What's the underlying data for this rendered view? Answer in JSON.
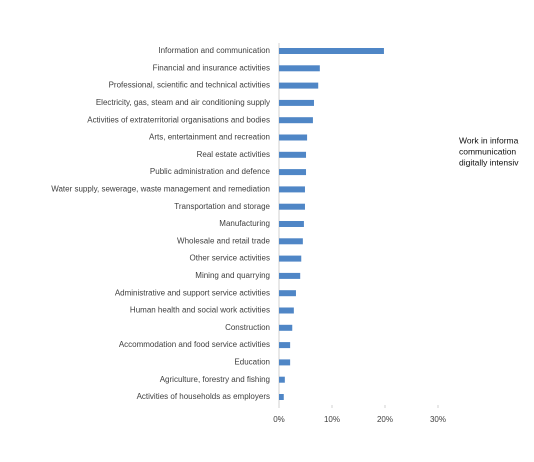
{
  "chart_data": {
    "type": "bar",
    "orientation": "horizontal",
    "categories": [
      "Information and communication",
      "Financial and insurance activities",
      "Professional, scientific and technical activities",
      "Electricity, gas, steam and air conditioning supply",
      "Activities of extraterritorial organisations and bodies",
      "Arts, entertainment and recreation",
      "Real estate activities",
      "Public administration and defence",
      "Water supply, sewerage, waste management and remediation",
      "Transportation and storage",
      "Manufacturing",
      "Wholesale and retail trade",
      "Other service activities",
      "Mining and quarrying",
      "Administrative and support service activities",
      "Human health and social work activities",
      "Construction",
      "Accommodation and food service activities",
      "Education",
      "Agriculture, forestry and fishing",
      "Activities of households as employers"
    ],
    "values": [
      19.8,
      7.7,
      7.4,
      6.6,
      6.4,
      5.3,
      5.1,
      5.1,
      4.9,
      4.9,
      4.7,
      4.5,
      4.2,
      4.0,
      3.2,
      2.8,
      2.5,
      2.1,
      2.1,
      1.1,
      0.9
    ],
    "color": "#4f86c6",
    "xlim": [
      0,
      30
    ],
    "xticks": [
      {
        "value": 0,
        "label": "0%"
      },
      {
        "value": 10,
        "label": "10%"
      },
      {
        "value": 20,
        "label": "20%"
      },
      {
        "value": 30,
        "label": "30%"
      }
    ],
    "annotation": [
      "Work in informa",
      "communication",
      "digitally intensiv"
    ]
  }
}
